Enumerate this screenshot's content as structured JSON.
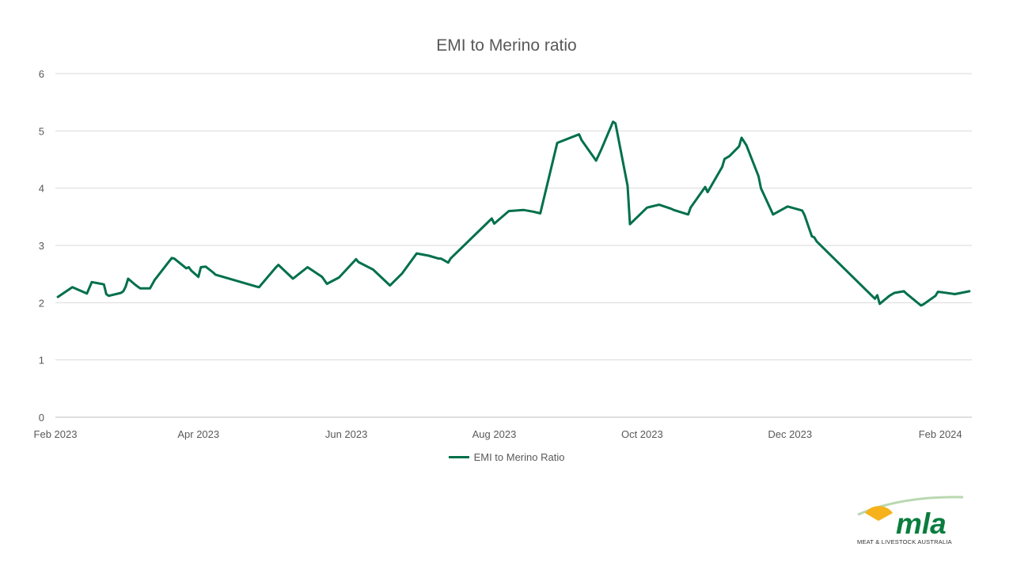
{
  "colors": {
    "series": "#00704A",
    "grid": "#d9d9d9",
    "text": "#595959",
    "logo_green": "#0a7d3e",
    "logo_yellow": "#f5b21a"
  },
  "logo": {
    "wordmark": "mla",
    "tagline": "MEAT & LIVESTOCK AUSTRALIA",
    "icon": "sun-over-hills-icon"
  },
  "chart_data": {
    "type": "line",
    "title": "EMI to Merino ratio",
    "xlabel": "",
    "ylabel": "",
    "ylim": [
      0,
      6
    ],
    "yticks": [
      0,
      1,
      2,
      3,
      4,
      5,
      6
    ],
    "xlim": [
      "2023-02-01",
      "2024-02-14"
    ],
    "xticks": [
      {
        "date": "2023-02-01",
        "label": "Feb 2023"
      },
      {
        "date": "2023-04-01",
        "label": "Apr 2023"
      },
      {
        "date": "2023-06-01",
        "label": "Jun 2023"
      },
      {
        "date": "2023-08-01",
        "label": "Aug 2023"
      },
      {
        "date": "2023-10-01",
        "label": "Oct 2023"
      },
      {
        "date": "2023-12-01",
        "label": "Dec 2023"
      },
      {
        "date": "2024-02-01",
        "label": "Feb 2024"
      }
    ],
    "grid": true,
    "legend": "bottom",
    "series": [
      {
        "name": "EMI to Merino Ratio",
        "x": [
          "2023-02-02",
          "2023-02-08",
          "2023-02-14",
          "2023-02-16",
          "2023-02-21",
          "2023-02-22",
          "2023-02-23",
          "2023-02-28",
          "2023-03-01",
          "2023-03-02",
          "2023-03-03",
          "2023-03-06",
          "2023-03-08",
          "2023-03-12",
          "2023-03-14",
          "2023-03-21",
          "2023-03-22",
          "2023-03-27",
          "2023-03-28",
          "2023-03-29",
          "2023-04-01",
          "2023-04-02",
          "2023-04-04",
          "2023-04-07",
          "2023-04-08",
          "2023-04-25",
          "2023-04-26",
          "2023-05-03",
          "2023-05-04",
          "2023-05-10",
          "2023-05-16",
          "2023-05-22",
          "2023-05-24",
          "2023-05-29",
          "2023-06-05",
          "2023-06-06",
          "2023-06-12",
          "2023-06-19",
          "2023-06-24",
          "2023-06-30",
          "2023-07-05",
          "2023-07-09",
          "2023-07-10",
          "2023-07-13",
          "2023-07-14",
          "2023-07-31",
          "2023-08-01",
          "2023-08-07",
          "2023-08-13",
          "2023-08-17",
          "2023-08-20",
          "2023-08-27",
          "2023-09-05",
          "2023-09-06",
          "2023-09-12",
          "2023-09-14",
          "2023-09-19",
          "2023-09-20",
          "2023-09-25",
          "2023-09-26",
          "2023-10-03",
          "2023-10-04",
          "2023-10-08",
          "2023-10-13",
          "2023-10-14",
          "2023-10-20",
          "2023-10-21",
          "2023-10-27",
          "2023-10-28",
          "2023-11-03",
          "2023-11-04",
          "2023-11-06",
          "2023-11-10",
          "2023-11-11",
          "2023-11-13",
          "2023-11-18",
          "2023-11-19",
          "2023-11-24",
          "2023-11-30",
          "2023-12-06",
          "2023-12-07",
          "2023-12-10",
          "2023-12-11",
          "2023-12-12",
          "2024-01-05",
          "2024-01-06",
          "2024-01-07",
          "2024-01-11",
          "2024-01-13",
          "2024-01-17",
          "2024-01-18",
          "2024-01-24",
          "2024-01-25",
          "2024-01-30",
          "2024-01-31",
          "2024-02-02",
          "2024-02-07",
          "2024-02-13"
        ],
        "y": [
          2.1,
          2.27,
          2.16,
          2.36,
          2.32,
          2.15,
          2.12,
          2.17,
          2.2,
          2.28,
          2.42,
          2.31,
          2.25,
          2.25,
          2.4,
          2.78,
          2.77,
          2.6,
          2.62,
          2.56,
          2.45,
          2.62,
          2.63,
          2.53,
          2.49,
          2.28,
          2.27,
          2.62,
          2.66,
          2.42,
          2.62,
          2.45,
          2.33,
          2.44,
          2.76,
          2.71,
          2.58,
          2.3,
          2.51,
          2.86,
          2.82,
          2.77,
          2.77,
          2.7,
          2.77,
          3.47,
          3.38,
          3.6,
          3.62,
          3.59,
          3.56,
          4.79,
          4.94,
          4.84,
          4.48,
          4.66,
          5.16,
          5.13,
          4.04,
          3.37,
          3.66,
          3.67,
          3.71,
          3.64,
          3.62,
          3.54,
          3.66,
          4.02,
          3.93,
          4.37,
          4.51,
          4.56,
          4.73,
          4.88,
          4.75,
          4.21,
          4.0,
          3.54,
          3.68,
          3.61,
          3.53,
          3.16,
          3.14,
          3.07,
          2.07,
          2.13,
          1.98,
          2.12,
          2.17,
          2.2,
          2.16,
          1.95,
          1.97,
          2.12,
          2.19,
          2.18,
          2.15,
          2.2
        ]
      }
    ]
  }
}
